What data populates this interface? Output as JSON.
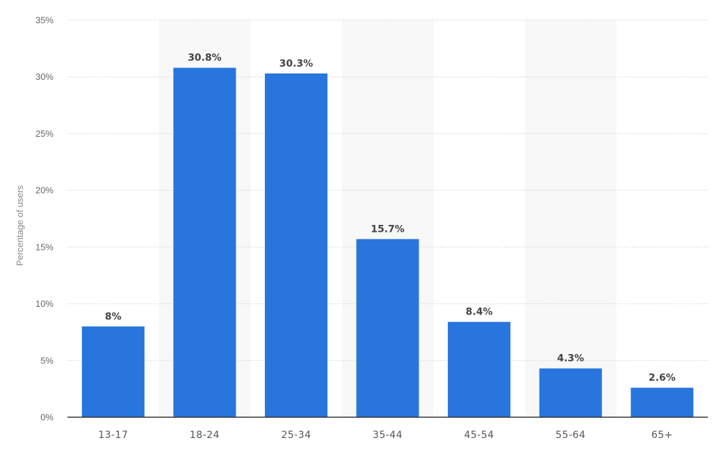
{
  "chart_data": {
    "type": "bar",
    "categories": [
      "13-17",
      "18-24",
      "25-34",
      "35-44",
      "45-54",
      "55-64",
      "65+"
    ],
    "values": [
      8,
      30.8,
      30.3,
      15.7,
      8.4,
      4.3,
      2.6
    ],
    "value_labels": [
      "8%",
      "30.8%",
      "30.3%",
      "15.7%",
      "8.4%",
      "4.3%",
      "2.6%"
    ],
    "title": "",
    "xlabel": "",
    "ylabel": "Percentage of users",
    "ylim": [
      0,
      35
    ],
    "yticks": [
      0,
      5,
      10,
      15,
      20,
      25,
      30,
      35
    ],
    "ytick_labels": [
      "0%",
      "5%",
      "10%",
      "15%",
      "20%",
      "25%",
      "30%",
      "35%"
    ],
    "grid": true,
    "alternating_bands": true,
    "colors": {
      "bar": "#2775dd",
      "band": "#f8f8f8",
      "grid": "#c8c8c8",
      "axis": "#333333"
    }
  }
}
